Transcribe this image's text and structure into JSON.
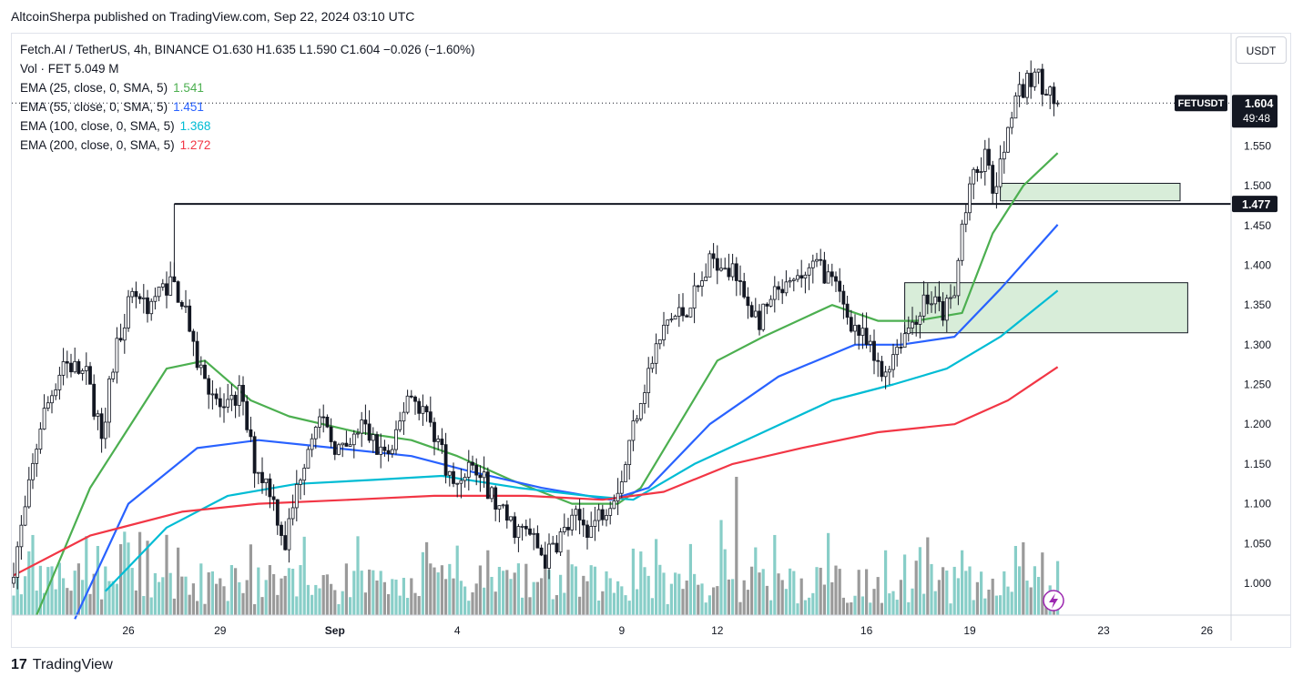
{
  "header": {
    "publisher_line": "AltcoinSherpa published on TradingView.com, Sep 22, 2024 03:10 UTC"
  },
  "legend": {
    "symbol_line": "Fetch.AI / TetherUS, 4h, BINANCE  O1.630  H1.635  L1.590  C1.604  −0.026 (−1.60%)",
    "volume_line": "Vol · FET  5.049 M",
    "ema": [
      {
        "label": "EMA (25, close, 0, SMA, 5)",
        "value": "1.541",
        "color": "#4caf50"
      },
      {
        "label": "EMA (55, close, 0, SMA, 5)",
        "value": "1.451",
        "color": "#2962ff"
      },
      {
        "label": "EMA (100, close, 0, SMA, 5)",
        "value": "1.368",
        "color": "#00bcd4"
      },
      {
        "label": "EMA (200, close, 0, SMA, 5)",
        "value": "1.272",
        "color": "#f23645"
      }
    ]
  },
  "currency_button": "USDT",
  "footer": {
    "logo_mark": "17",
    "logo_text": "TradingView"
  },
  "chart_data": {
    "type": "candlestick",
    "symbol": "FETUSDT",
    "timeframe": "4h",
    "ylim": [
      0.955,
      1.685
    ],
    "y_ticks": [
      1.0,
      1.05,
      1.1,
      1.15,
      1.2,
      1.25,
      1.3,
      1.35,
      1.4,
      1.45,
      1.5,
      1.55
    ],
    "y_tick_labels": [
      "1.000",
      "1.050",
      "1.100",
      "1.150",
      "1.200",
      "1.250",
      "1.300",
      "1.350",
      "1.400",
      "1.450",
      "1.500",
      "1.550"
    ],
    "x_tick_labels": [
      {
        "label": "26",
        "bar": 30
      },
      {
        "label": "29",
        "bar": 54
      },
      {
        "label": "Sep",
        "bar": 84
      },
      {
        "label": "4",
        "bar": 116
      },
      {
        "label": "9",
        "bar": 159
      },
      {
        "label": "12",
        "bar": 184
      },
      {
        "label": "16",
        "bar": 223
      },
      {
        "label": "19",
        "bar": 250
      },
      {
        "label": "23",
        "bar": 285
      },
      {
        "label": "26",
        "bar": 312
      }
    ],
    "last_price": {
      "label": "FETUSDT",
      "price": "1.604",
      "countdown": "49:48",
      "value": 1.604
    },
    "horizontal_line": {
      "value": 1.477,
      "label": "1.477",
      "start_bar": 42
    },
    "zones": [
      {
        "from_bar": 258,
        "to_bar": 305,
        "top": 1.503,
        "bottom": 1.481
      },
      {
        "from_bar": 233,
        "to_bar": 307,
        "top": 1.378,
        "bottom": 1.315
      }
    ],
    "n_bars": 274,
    "price_path": [
      [
        0,
        1.0
      ],
      [
        4,
        1.09
      ],
      [
        8,
        1.2
      ],
      [
        14,
        1.28
      ],
      [
        20,
        1.26
      ],
      [
        24,
        1.19
      ],
      [
        28,
        1.3
      ],
      [
        32,
        1.37
      ],
      [
        36,
        1.35
      ],
      [
        42,
        1.38
      ],
      [
        46,
        1.35
      ],
      [
        48,
        1.29
      ],
      [
        52,
        1.25
      ],
      [
        56,
        1.21
      ],
      [
        60,
        1.24
      ],
      [
        64,
        1.15
      ],
      [
        68,
        1.12
      ],
      [
        72,
        1.05
      ],
      [
        76,
        1.14
      ],
      [
        80,
        1.21
      ],
      [
        84,
        1.18
      ],
      [
        88,
        1.16
      ],
      [
        92,
        1.2
      ],
      [
        96,
        1.17
      ],
      [
        100,
        1.16
      ],
      [
        104,
        1.24
      ],
      [
        108,
        1.22
      ],
      [
        112,
        1.18
      ],
      [
        116,
        1.12
      ],
      [
        120,
        1.15
      ],
      [
        124,
        1.13
      ],
      [
        128,
        1.09
      ],
      [
        132,
        1.07
      ],
      [
        136,
        1.06
      ],
      [
        140,
        1.03
      ],
      [
        144,
        1.06
      ],
      [
        148,
        1.08
      ],
      [
        152,
        1.07
      ],
      [
        156,
        1.1
      ],
      [
        160,
        1.13
      ],
      [
        164,
        1.22
      ],
      [
        168,
        1.28
      ],
      [
        172,
        1.33
      ],
      [
        176,
        1.34
      ],
      [
        180,
        1.37
      ],
      [
        184,
        1.41
      ],
      [
        188,
        1.4
      ],
      [
        192,
        1.36
      ],
      [
        196,
        1.33
      ],
      [
        200,
        1.36
      ],
      [
        204,
        1.37
      ],
      [
        208,
        1.39
      ],
      [
        212,
        1.4
      ],
      [
        216,
        1.37
      ],
      [
        220,
        1.33
      ],
      [
        224,
        1.3
      ],
      [
        228,
        1.26
      ],
      [
        232,
        1.3
      ],
      [
        236,
        1.33
      ],
      [
        240,
        1.36
      ],
      [
        244,
        1.34
      ],
      [
        247,
        1.36
      ],
      [
        249,
        1.45
      ],
      [
        252,
        1.51
      ],
      [
        255,
        1.54
      ],
      [
        257,
        1.49
      ],
      [
        259,
        1.52
      ],
      [
        262,
        1.6
      ],
      [
        265,
        1.62
      ],
      [
        268,
        1.64
      ],
      [
        271,
        1.625
      ],
      [
        273,
        1.604
      ]
    ],
    "ema_series": {
      "ema25": [
        [
          6,
          0.96
        ],
        [
          20,
          1.12
        ],
        [
          40,
          1.27
        ],
        [
          50,
          1.28
        ],
        [
          62,
          1.23
        ],
        [
          72,
          1.21
        ],
        [
          90,
          1.19
        ],
        [
          104,
          1.18
        ],
        [
          116,
          1.16
        ],
        [
          130,
          1.13
        ],
        [
          146,
          1.1
        ],
        [
          158,
          1.1
        ],
        [
          164,
          1.12
        ],
        [
          174,
          1.2
        ],
        [
          184,
          1.28
        ],
        [
          196,
          1.31
        ],
        [
          214,
          1.35
        ],
        [
          226,
          1.33
        ],
        [
          236,
          1.33
        ],
        [
          248,
          1.34
        ],
        [
          256,
          1.44
        ],
        [
          264,
          1.5
        ],
        [
          273,
          1.541
        ]
      ],
      "ema55": [
        [
          16,
          0.955
        ],
        [
          30,
          1.1
        ],
        [
          48,
          1.17
        ],
        [
          64,
          1.18
        ],
        [
          84,
          1.17
        ],
        [
          104,
          1.16
        ],
        [
          120,
          1.14
        ],
        [
          138,
          1.12
        ],
        [
          156,
          1.105
        ],
        [
          166,
          1.12
        ],
        [
          182,
          1.2
        ],
        [
          200,
          1.26
        ],
        [
          220,
          1.3
        ],
        [
          232,
          1.3
        ],
        [
          246,
          1.31
        ],
        [
          258,
          1.37
        ],
        [
          273,
          1.451
        ]
      ],
      "ema100": [
        [
          24,
          0.99
        ],
        [
          40,
          1.07
        ],
        [
          56,
          1.11
        ],
        [
          74,
          1.125
        ],
        [
          94,
          1.13
        ],
        [
          112,
          1.135
        ],
        [
          132,
          1.12
        ],
        [
          150,
          1.11
        ],
        [
          162,
          1.105
        ],
        [
          178,
          1.15
        ],
        [
          196,
          1.19
        ],
        [
          214,
          1.23
        ],
        [
          230,
          1.25
        ],
        [
          244,
          1.27
        ],
        [
          258,
          1.31
        ],
        [
          273,
          1.368
        ]
      ],
      "ema200": [
        [
          0,
          1.01
        ],
        [
          20,
          1.06
        ],
        [
          44,
          1.09
        ],
        [
          64,
          1.1
        ],
        [
          88,
          1.105
        ],
        [
          110,
          1.11
        ],
        [
          134,
          1.11
        ],
        [
          154,
          1.105
        ],
        [
          170,
          1.115
        ],
        [
          188,
          1.15
        ],
        [
          206,
          1.17
        ],
        [
          226,
          1.19
        ],
        [
          246,
          1.2
        ],
        [
          260,
          1.23
        ],
        [
          273,
          1.272
        ]
      ]
    },
    "volume_spikes": {
      "189": 1.6,
      "185": 1.1,
      "239": 0.9,
      "262": 0.8,
      "124": 0.75,
      "248": 0.75,
      "22": 0.8
    }
  }
}
